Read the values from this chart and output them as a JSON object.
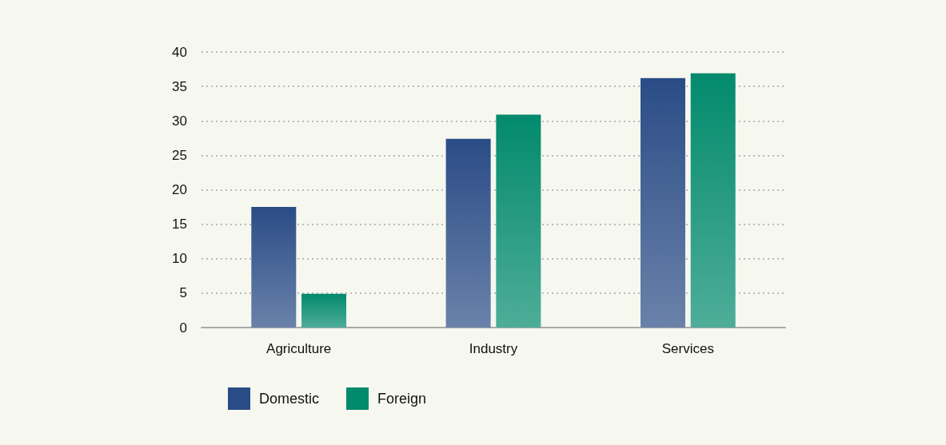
{
  "chart_data": {
    "type": "bar",
    "categories": [
      "Agriculture",
      "Industry",
      "Services"
    ],
    "series": [
      {
        "name": "Domestic",
        "color": "#2a4c86",
        "values": [
          17.5,
          27.4,
          36.2
        ]
      },
      {
        "name": "Foreign",
        "color": "#028a6c",
        "values": [
          4.9,
          30.9,
          36.9
        ]
      }
    ],
    "ylim": [
      0,
      40
    ],
    "yticks": [
      0,
      5,
      10,
      15,
      20,
      25,
      30,
      35,
      40
    ],
    "grid": "y",
    "legend": "bottom left"
  }
}
